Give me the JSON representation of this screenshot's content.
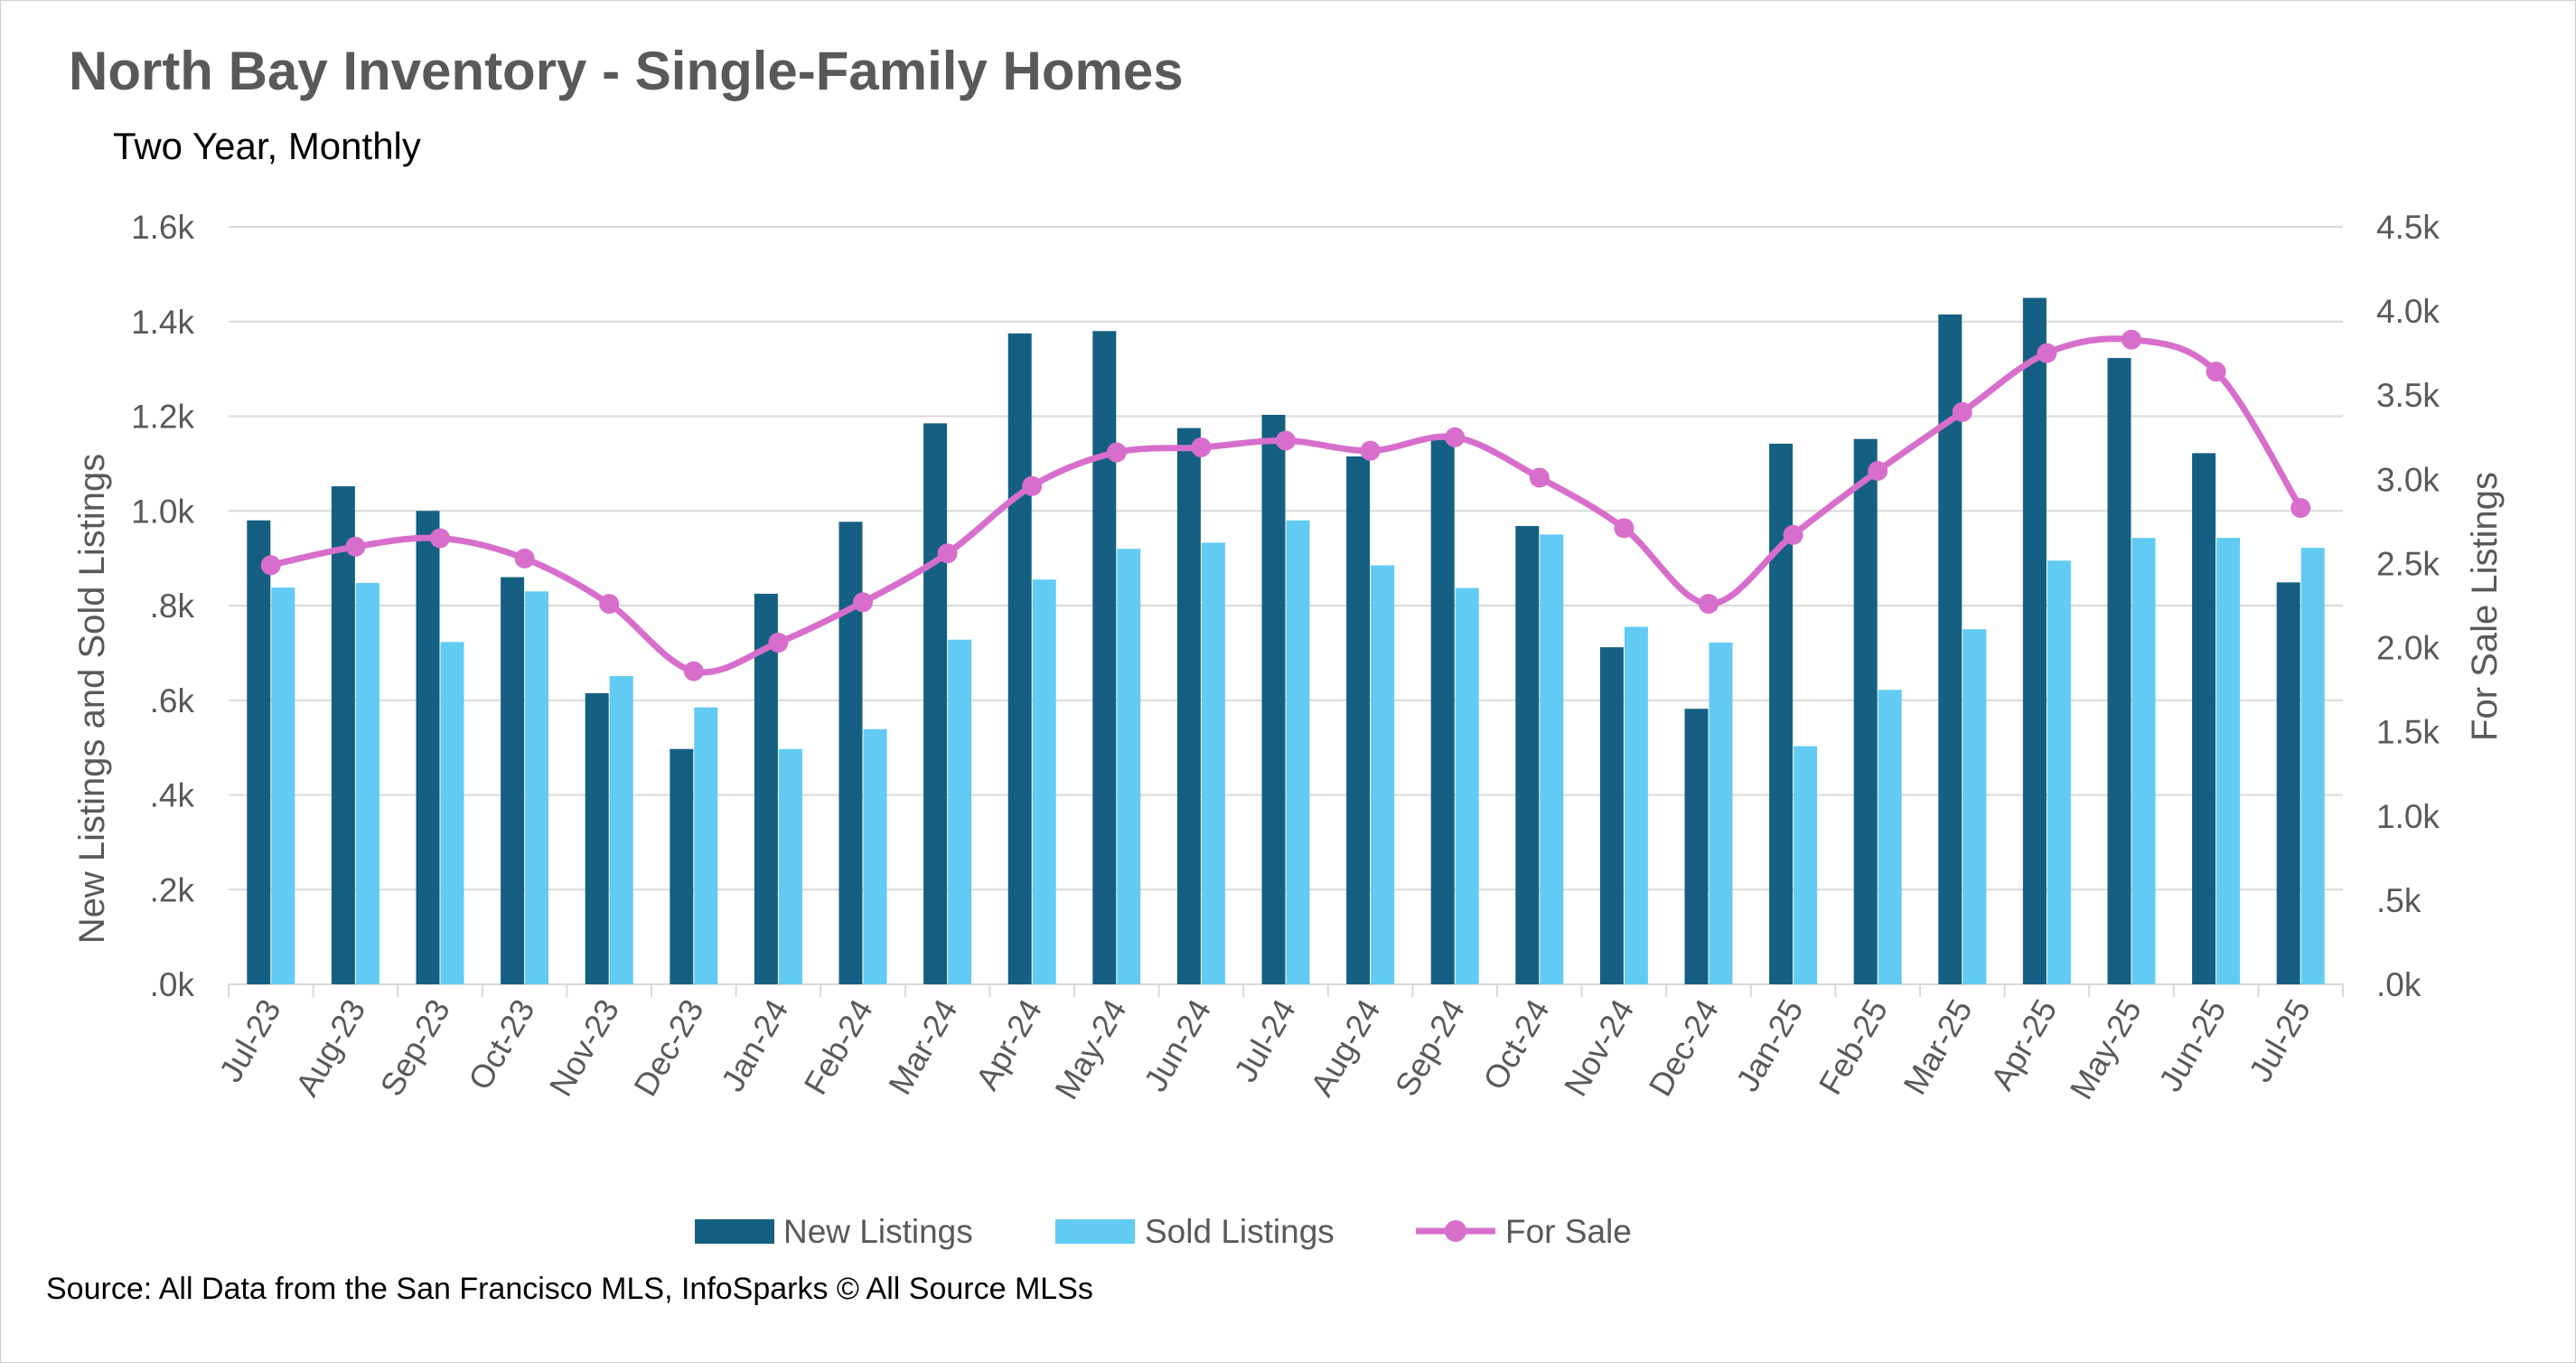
{
  "chart_data": {
    "type": "bar",
    "title": "North Bay Inventory - Single-Family Homes",
    "subtitle": "Two Year, Monthly",
    "source": "Source: All Data from the San Francisco MLS, InfoSparks © All Source MLSs",
    "categories": [
      "Jul-23",
      "Aug-23",
      "Sep-23",
      "Oct-23",
      "Nov-23",
      "Dec-23",
      "Jan-24",
      "Feb-24",
      "Mar-24",
      "Apr-24",
      "May-24",
      "Jun-24",
      "Jul-24",
      "Aug-24",
      "Sep-24",
      "Oct-24",
      "Nov-24",
      "Dec-24",
      "Jan-25",
      "Feb-25",
      "Mar-25",
      "Apr-25",
      "May-25",
      "Jun-25",
      "Jul-25"
    ],
    "ylabel": "New Listings and Sold Listings",
    "ylabel_right": "For Sale Listings",
    "ylim": [
      0,
      1600
    ],
    "ylim_right": [
      0,
      4500
    ],
    "yticks": [
      ".0k",
      ".2k",
      ".4k",
      ".6k",
      ".8k",
      "1.0k",
      "1.2k",
      "1.4k",
      "1.6k"
    ],
    "yticks_right": [
      ".0k",
      ".5k",
      "1.0k",
      "1.5k",
      "2.0k",
      "2.5k",
      "3.0k",
      "3.5k",
      "4.0k",
      "4.5k"
    ],
    "grid": true,
    "legend_position": "bottom",
    "series": [
      {
        "name": "New Listings",
        "type": "bar",
        "axis": "left",
        "color": "#156082",
        "values": [
          980,
          1052,
          1000,
          860,
          615,
          497,
          825,
          977,
          1185,
          1375,
          1380,
          1175,
          1203,
          1115,
          1150,
          968,
          712,
          582,
          1142,
          1152,
          1415,
          1450,
          1323,
          1122,
          849
        ]
      },
      {
        "name": "Sold Listings",
        "type": "bar",
        "axis": "left",
        "color": "#61CBF4",
        "values": [
          838,
          848,
          723,
          830,
          651,
          585,
          497,
          539,
          728,
          855,
          920,
          933,
          980,
          885,
          837,
          950,
          755,
          722,
          503,
          622,
          750,
          895,
          943,
          943,
          922
        ]
      },
      {
        "name": "For Sale",
        "type": "line",
        "axis": "right",
        "color": "#D86ECC",
        "values": [
          2490,
          2600,
          2650,
          2530,
          2260,
          1860,
          2030,
          2270,
          2560,
          2960,
          3160,
          3190,
          3230,
          3170,
          3250,
          3010,
          2710,
          2260,
          2670,
          3050,
          3400,
          3750,
          3830,
          3640,
          2830
        ]
      }
    ]
  }
}
